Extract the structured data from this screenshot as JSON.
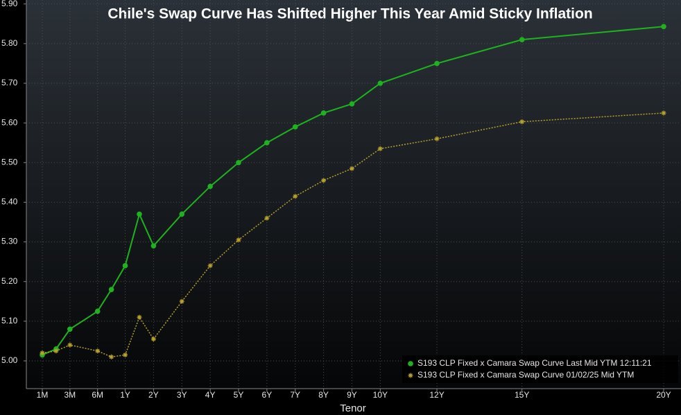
{
  "chart_data": {
    "type": "line",
    "title": "Chile's Swap Curve Has Shifted Higher This Year Amid Sticky Inflation",
    "x_label": "Tenor",
    "x": [
      0.0833,
      0.1667,
      0.25,
      0.5,
      0.75,
      1,
      1.5,
      2,
      3,
      4,
      5,
      6,
      7,
      8,
      9,
      10,
      12,
      15,
      20
    ],
    "series": [
      {
        "name": "S193 CLP Fixed x Camara Swap Curve Last Mid YTM 12:11:21",
        "color": "#1fb21f",
        "marker": "circle",
        "values": [
          5.015,
          5.03,
          5.08,
          5.125,
          5.18,
          5.24,
          5.37,
          5.29,
          5.37,
          5.44,
          5.5,
          5.55,
          5.59,
          5.625,
          5.648,
          5.7,
          5.75,
          5.81,
          5.843
        ]
      },
      {
        "name": "S193 CLP Fixed x Camara Swap Curve 01/02/25 Mid YTM",
        "color": "#b8a22c",
        "marker": "asterisk",
        "values": [
          5.02,
          5.025,
          5.04,
          5.025,
          5.01,
          5.015,
          5.11,
          5.055,
          5.15,
          5.24,
          5.305,
          5.36,
          5.415,
          5.455,
          5.485,
          5.535,
          5.56,
          5.603,
          5.625
        ]
      }
    ],
    "xticks": [
      {
        "value": 0.0833,
        "label": "1M"
      },
      {
        "value": 0.25,
        "label": "3M"
      },
      {
        "value": 0.5,
        "label": "6M"
      },
      {
        "value": 1,
        "label": "1Y"
      },
      {
        "value": 2,
        "label": "2Y"
      },
      {
        "value": 3,
        "label": "3Y"
      },
      {
        "value": 4,
        "label": "4Y"
      },
      {
        "value": 5,
        "label": "5Y"
      },
      {
        "value": 6,
        "label": "6Y"
      },
      {
        "value": 7,
        "label": "7Y"
      },
      {
        "value": 8,
        "label": "8Y"
      },
      {
        "value": 9,
        "label": "9Y"
      },
      {
        "value": 10,
        "label": "10Y"
      },
      {
        "value": 12,
        "label": "12Y"
      },
      {
        "value": 15,
        "label": "15Y"
      },
      {
        "value": 20,
        "label": "20Y"
      }
    ],
    "ylim": [
      4.93,
      5.91
    ],
    "yticks": [
      {
        "value": 5.0,
        "label": "5.00"
      },
      {
        "value": 5.1,
        "label": "5.10"
      },
      {
        "value": 5.2,
        "label": "5.20"
      },
      {
        "value": 5.3,
        "label": "5.30"
      },
      {
        "value": 5.4,
        "label": "5.40"
      },
      {
        "value": 5.5,
        "label": "5.50"
      },
      {
        "value": 5.6,
        "label": "5.60"
      },
      {
        "value": 5.7,
        "label": "5.70"
      },
      {
        "value": 5.8,
        "label": "5.80"
      },
      {
        "value": 5.9,
        "label": "5.90"
      }
    ],
    "grid": true,
    "legend": "bottom-right"
  }
}
